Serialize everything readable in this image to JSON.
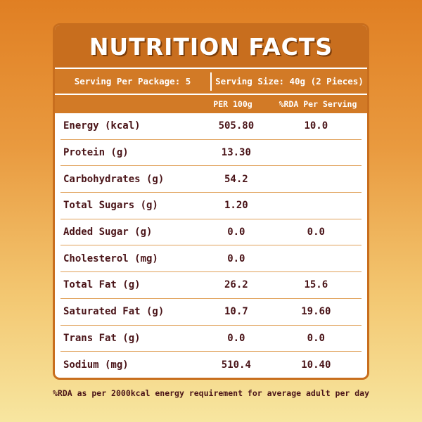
{
  "title": "NUTRITION FACTS",
  "serving": {
    "per_package": "Serving Per Package: 5",
    "size": "Serving Size: 40g (2 Pieces)"
  },
  "columns": {
    "per100": "PER 100g",
    "rda": "%RDA Per Serving"
  },
  "rows": [
    {
      "name": "Energy (kcal)",
      "per100": "505.80",
      "rda": "10.0"
    },
    {
      "name": "Protein (g)",
      "per100": "13.30",
      "rda": ""
    },
    {
      "name": "Carbohydrates (g)",
      "per100": "54.2",
      "rda": ""
    },
    {
      "name": "Total Sugars (g)",
      "per100": "1.20",
      "rda": ""
    },
    {
      "name": "Added Sugar (g)",
      "per100": "0.0",
      "rda": "0.0"
    },
    {
      "name": "Cholesterol (mg)",
      "per100": "0.0",
      "rda": ""
    },
    {
      "name": "Total Fat (g)",
      "per100": "26.2",
      "rda": "15.6"
    },
    {
      "name": "Saturated Fat (g)",
      "per100": "10.7",
      "rda": "19.60"
    },
    {
      "name": "Trans Fat (g)",
      "per100": "0.0",
      "rda": "0.0"
    },
    {
      "name": "Sodium (mg)",
      "per100": "510.4",
      "rda": "10.40"
    }
  ],
  "footnote": "%RDA as per 2000kcal energy requirement for average adult per day",
  "colors": {
    "header": "#c86e1e",
    "text": "#4a1418",
    "rule": "#e0a058"
  }
}
